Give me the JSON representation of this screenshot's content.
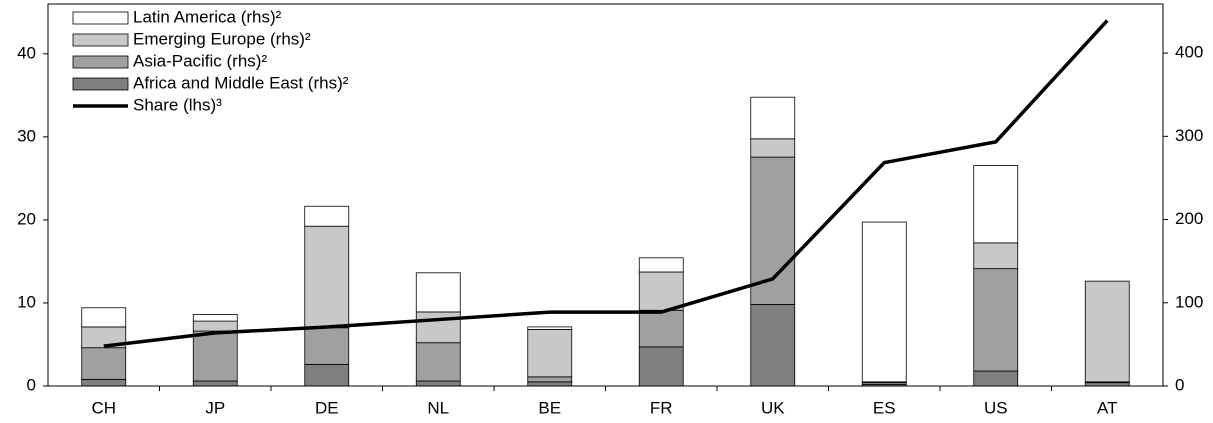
{
  "chart_data": {
    "type": "bar",
    "stacked": true,
    "categories": [
      "CH",
      "JP",
      "DE",
      "NL",
      "BE",
      "FR",
      "UK",
      "ES",
      "US",
      "AT"
    ],
    "series": [
      {
        "name": "Africa and Middle East (rhs)²",
        "type": "bar",
        "axis": "y2",
        "color": "#7f7f7f",
        "values": [
          8,
          6,
          26,
          6,
          5,
          47,
          98,
          2,
          18,
          4
        ]
      },
      {
        "name": "Asia-Pacific (rhs)²",
        "type": "bar",
        "axis": "y2",
        "color": "#a0a0a0",
        "values": [
          38,
          60,
          44,
          46,
          6,
          44,
          177,
          2,
          123,
          1
        ]
      },
      {
        "name": "Emerging Europe (rhs)²",
        "type": "bar",
        "axis": "y2",
        "color": "#c8c8c8",
        "values": [
          25,
          12,
          122,
          37,
          57,
          46,
          22,
          1,
          31,
          121
        ]
      },
      {
        "name": "Latin America (rhs)²",
        "type": "bar",
        "axis": "y2",
        "color": "#ffffff",
        "values": [
          23,
          8,
          24,
          47,
          3,
          17,
          50,
          192,
          93,
          0
        ]
      },
      {
        "name": "Share (lhs)³",
        "type": "line",
        "axis": "y",
        "color": "#000000",
        "values": [
          4.8,
          6.4,
          7.1,
          8.0,
          8.9,
          8.9,
          12.9,
          26.9,
          29.4,
          44.0
        ]
      }
    ],
    "ylim": [
      0,
      46
    ],
    "yticks": [
      0,
      10,
      20,
      30,
      40
    ],
    "y2lim": [
      0,
      459
    ],
    "y2ticks": [
      0,
      100,
      200,
      300,
      400
    ],
    "legend": "upper left"
  }
}
